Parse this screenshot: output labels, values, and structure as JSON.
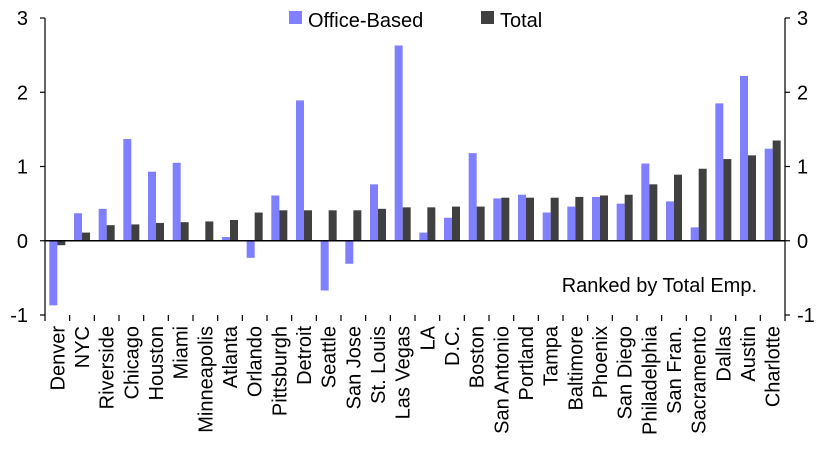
{
  "chart_data": {
    "type": "bar",
    "title": "",
    "xlabel": "",
    "ylabel": "",
    "ylim": [
      -1,
      3
    ],
    "yticks": [
      -1,
      0,
      1,
      2,
      3
    ],
    "secondary_axis": true,
    "grid": false,
    "legend_position": "top",
    "annotation": "Ranked by Total Emp.",
    "categories": [
      "Denver",
      "NYC",
      "Riverside",
      "Chicago",
      "Houston",
      "Miami",
      "Minneapolis",
      "Atlanta",
      "Orlando",
      "Pittsburgh",
      "Detroit",
      "Seattle",
      "San Jose",
      "St. Louis",
      "Las Vegas",
      "LA",
      "D.C.",
      "Boston",
      "San Antonio",
      "Portland",
      "Tampa",
      "Baltimore",
      "Phoenix",
      "San Diego",
      "Philadelphia",
      "San Fran.",
      "Sacramento",
      "Dallas",
      "Austin",
      "Charlotte"
    ],
    "series": [
      {
        "name": "Office-Based",
        "color": "#7f7fff",
        "values": [
          -0.87,
          0.37,
          0.43,
          1.37,
          0.93,
          1.05,
          0.0,
          0.05,
          -0.23,
          0.61,
          1.89,
          -0.67,
          -0.31,
          0.76,
          2.63,
          0.11,
          0.31,
          1.18,
          0.57,
          0.62,
          0.38,
          0.46,
          0.59,
          0.5,
          1.04,
          0.53,
          0.18,
          1.85,
          2.22,
          1.24
        ]
      },
      {
        "name": "Total",
        "color": "#404040",
        "values": [
          -0.06,
          0.11,
          0.21,
          0.22,
          0.24,
          0.25,
          0.26,
          0.28,
          0.38,
          0.41,
          0.41,
          0.41,
          0.41,
          0.43,
          0.45,
          0.45,
          0.46,
          0.46,
          0.58,
          0.58,
          0.58,
          0.59,
          0.61,
          0.62,
          0.76,
          0.89,
          0.97,
          1.1,
          1.15,
          1.35
        ]
      }
    ]
  }
}
